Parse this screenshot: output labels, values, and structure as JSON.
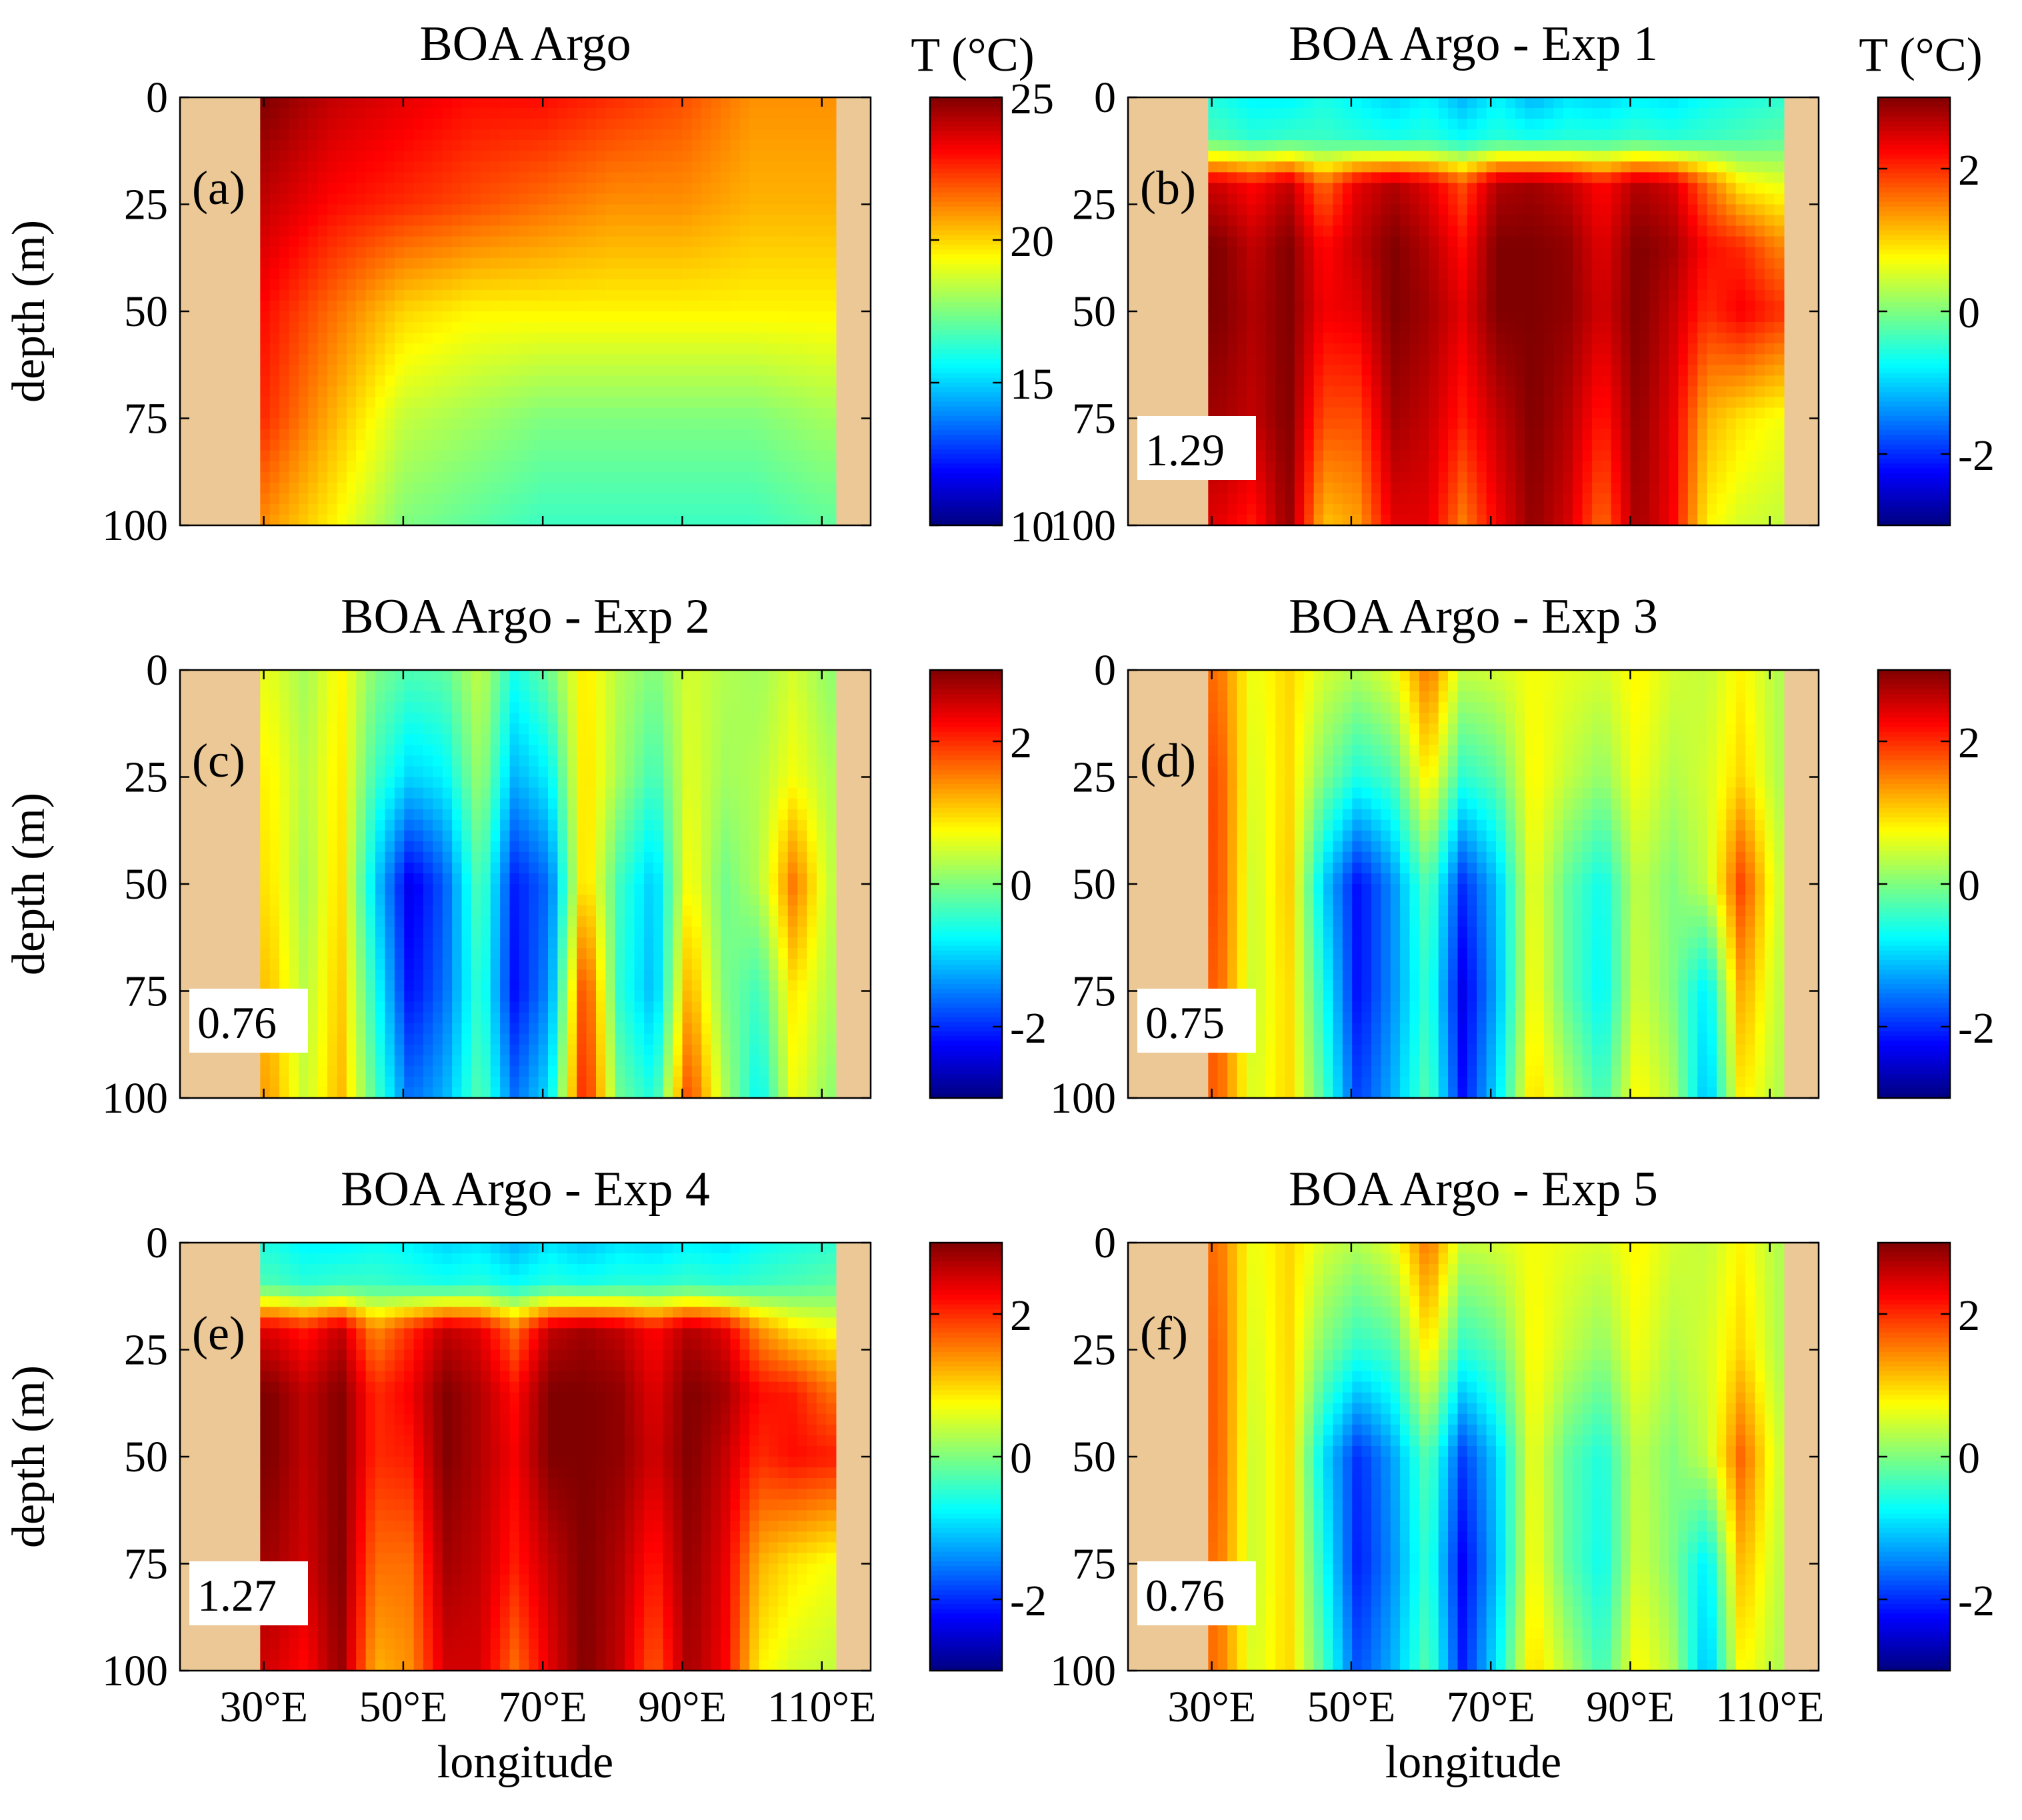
{
  "figure": {
    "xlabel": "longitude",
    "ylabel": "depth (m)",
    "colorbar_title": "T (°C)"
  },
  "chart_data": [
    {
      "type": "heatmap",
      "panel": "(a)",
      "title": "BOA Argo",
      "xlabel": "",
      "ylabel": "depth (m)",
      "x_ticks": [
        "30°E",
        "50°E",
        "70°E",
        "90°E",
        "110°E"
      ],
      "x_tick_values": [
        30,
        50,
        70,
        90,
        110
      ],
      "x_tick_labels_visible": false,
      "xlim": [
        18,
        117
      ],
      "y_ticks": [
        "0",
        "25",
        "50",
        "75",
        "100"
      ],
      "y_tick_values": [
        0,
        25,
        50,
        75,
        100
      ],
      "ylim": [
        0,
        100
      ],
      "y_reversed": true,
      "land_extent": [
        29.5,
        112
      ],
      "colorbar": {
        "title": "T (°C)",
        "ticks": [
          "25",
          "20",
          "15",
          "10"
        ],
        "tick_values": [
          25,
          20,
          15,
          10
        ],
        "range": [
          10,
          25
        ],
        "colormap": "jet"
      },
      "value_label": "",
      "field": {
        "x": [
          30,
          40,
          50,
          60,
          70,
          80,
          90,
          100,
          110
        ],
        "depth": [
          0,
          25,
          50,
          75,
          100
        ],
        "values": [
          [
            25,
            24,
            23.5,
            23,
            23,
            22.5,
            22,
            21,
            21
          ],
          [
            24,
            23,
            22.5,
            22,
            21.5,
            21,
            21,
            20.5,
            20.5
          ],
          [
            23,
            21.5,
            20,
            19.5,
            19.5,
            19.5,
            19.5,
            19.5,
            19.5
          ],
          [
            22.5,
            20.5,
            18.5,
            18,
            17.5,
            17.5,
            17.5,
            17.5,
            18
          ],
          [
            21,
            19.5,
            17.5,
            17,
            16.5,
            16.5,
            16.5,
            16.5,
            17
          ]
        ]
      }
    },
    {
      "type": "heatmap",
      "panel": "(b)",
      "title": "BOA Argo - Exp 1",
      "xlabel": "",
      "ylabel": "",
      "x_ticks": [
        "30°E",
        "50°E",
        "70°E",
        "90°E",
        "110°E"
      ],
      "x_tick_values": [
        30,
        50,
        70,
        90,
        110
      ],
      "x_tick_labels_visible": false,
      "xlim": [
        18,
        117
      ],
      "y_ticks": [
        "0",
        "25",
        "50",
        "75",
        "100"
      ],
      "y_tick_values": [
        0,
        25,
        50,
        75,
        100
      ],
      "ylim": [
        0,
        100
      ],
      "y_reversed": true,
      "land_extent": [
        29.5,
        112
      ],
      "colorbar": {
        "title": "T (°C)",
        "ticks": [
          "2",
          "0",
          "-2"
        ],
        "tick_values": [
          2,
          0,
          -2
        ],
        "range": [
          -3,
          3
        ],
        "colormap": "jet"
      },
      "value_label": "1.29",
      "field": {
        "x": [
          31,
          36,
          41,
          46,
          51,
          56,
          61,
          66,
          71,
          76,
          81,
          86,
          91,
          96,
          101,
          106,
          111
        ],
        "depth": [
          0,
          10,
          20,
          35,
          50,
          75,
          100
        ],
        "values": [
          [
            -0.6,
            -0.8,
            -0.8,
            -0.6,
            -0.8,
            -1,
            -0.8,
            -1.2,
            -0.8,
            -1.2,
            -0.9,
            -1,
            -0.8,
            -0.9,
            -0.7,
            -0.6,
            -0.5
          ],
          [
            -0.3,
            -0.5,
            -0.4,
            -0.4,
            -0.5,
            -0.6,
            -0.5,
            -0.7,
            -0.5,
            -0.6,
            -0.5,
            -0.5,
            -0.4,
            -0.5,
            -0.4,
            -0.3,
            -0.2
          ],
          [
            2.5,
            2.2,
            2.6,
            1.6,
            2.4,
            2.7,
            2.4,
            1.8,
            2.7,
            2.8,
            2.6,
            2.2,
            2.7,
            2.5,
            1.6,
            0.8,
            0.6
          ],
          [
            3,
            2.6,
            3,
            2.2,
            2.6,
            3,
            2.7,
            2.2,
            3,
            3,
            2.9,
            2.4,
            3,
            2.8,
            2.2,
            2,
            1.5
          ],
          [
            3,
            2.7,
            3,
            2.3,
            2.4,
            3,
            2.8,
            2.4,
            3,
            3,
            2.9,
            2.5,
            3,
            2.6,
            2,
            2.3,
            2
          ],
          [
            2.8,
            2.6,
            3,
            1.8,
            1.8,
            2.8,
            2.6,
            2.1,
            2.6,
            3,
            2.7,
            2.1,
            2.9,
            2.4,
            1.2,
            0.9,
            0.7
          ],
          [
            2.4,
            2.1,
            2.9,
            1.1,
            1.3,
            2.4,
            2.4,
            1.5,
            2.3,
            2.9,
            2.5,
            1.6,
            2.8,
            2.3,
            0.8,
            0.5,
            0.4
          ]
        ]
      }
    },
    {
      "type": "heatmap",
      "panel": "(c)",
      "title": "BOA Argo - Exp 2",
      "xlabel": "",
      "ylabel": "depth (m)",
      "x_ticks": [
        "30°E",
        "50°E",
        "70°E",
        "90°E",
        "110°E"
      ],
      "x_tick_values": [
        30,
        50,
        70,
        90,
        110
      ],
      "x_tick_labels_visible": false,
      "xlim": [
        18,
        117
      ],
      "y_ticks": [
        "0",
        "25",
        "50",
        "75",
        "100"
      ],
      "y_tick_values": [
        0,
        25,
        50,
        75,
        100
      ],
      "ylim": [
        0,
        100
      ],
      "y_reversed": true,
      "land_extent": [
        29.5,
        112
      ],
      "colorbar": {
        "title": "",
        "ticks": [
          "2",
          "0",
          "-2"
        ],
        "tick_values": [
          2,
          0,
          -2
        ],
        "range": [
          -3,
          3
        ],
        "colormap": "jet"
      },
      "value_label": "0.76",
      "field": {
        "x": [
          31,
          36,
          41,
          46,
          51,
          56,
          61,
          66,
          71,
          76,
          81,
          86,
          91,
          96,
          101,
          106,
          111
        ],
        "depth": [
          0,
          25,
          50,
          75,
          100
        ],
        "values": [
          [
            0.6,
            0.2,
            0.8,
            0,
            -0.3,
            -0.2,
            0.4,
            -0.6,
            -0.1,
            0.9,
            0.3,
            0,
            0.5,
            0.3,
            0.2,
            0.5,
            0.1
          ],
          [
            0.8,
            0.3,
            0.9,
            -0.4,
            -1,
            -0.8,
            0.2,
            -1.2,
            -0.8,
            1,
            0.2,
            -0.4,
            0.6,
            0.2,
            0.3,
            0.7,
            0.3
          ],
          [
            0.9,
            0.2,
            1,
            -1,
            -2.4,
            -1.7,
            -0.2,
            -2.1,
            -1.6,
            1.1,
            -0.4,
            -1.1,
            0.8,
            -0.1,
            0.3,
            1.6,
            0.4
          ],
          [
            1.1,
            0.3,
            1.1,
            -0.6,
            -2.2,
            -1.6,
            -0.4,
            -2.2,
            -1.4,
            2,
            -0.5,
            -1.2,
            1.3,
            0,
            -0.4,
            0.9,
            0.3
          ],
          [
            1.3,
            0.4,
            1.2,
            -0.3,
            -1.6,
            -1.2,
            -0.2,
            -1.6,
            -0.9,
            2.2,
            -0.1,
            -0.6,
            1.9,
            0.3,
            -0.8,
            0.7,
            0.1
          ]
        ]
      }
    },
    {
      "type": "heatmap",
      "panel": "(d)",
      "title": "BOA Argo - Exp 3",
      "xlabel": "",
      "ylabel": "",
      "x_ticks": [
        "30°E",
        "50°E",
        "70°E",
        "90°E",
        "110°E"
      ],
      "x_tick_values": [
        30,
        50,
        70,
        90,
        110
      ],
      "x_tick_labels_visible": false,
      "xlim": [
        18,
        117
      ],
      "y_ticks": [
        "0",
        "25",
        "50",
        "75",
        "100"
      ],
      "y_tick_values": [
        0,
        25,
        50,
        75,
        100
      ],
      "ylim": [
        0,
        100
      ],
      "y_reversed": true,
      "land_extent": [
        29.5,
        112
      ],
      "colorbar": {
        "title": "",
        "ticks": [
          "2",
          "0",
          "-2"
        ],
        "tick_values": [
          2,
          0,
          -2
        ],
        "range": [
          -3,
          3
        ],
        "colormap": "jet"
      },
      "value_label": "0.75",
      "field": {
        "x": [
          31,
          36,
          41,
          46,
          51,
          56,
          61,
          66,
          71,
          76,
          81,
          86,
          91,
          96,
          101,
          106,
          111
        ],
        "depth": [
          0,
          25,
          50,
          75,
          100
        ],
        "values": [
          [
            1.6,
            0.6,
            1,
            0.5,
            0.3,
            0.6,
            1.6,
            0.4,
            0.5,
            0.7,
            0.6,
            0.5,
            0.8,
            0.5,
            0.4,
            0.8,
            0.3
          ],
          [
            1.8,
            0.5,
            1,
            0,
            -0.6,
            -0.3,
            0.9,
            -0.5,
            -0.2,
            0.8,
            0.4,
            0.1,
            0.7,
            0.3,
            0.5,
            1,
            0.3
          ],
          [
            1.8,
            0.4,
            1.1,
            -1,
            -2.2,
            -1.4,
            -0.2,
            -2,
            -1.1,
            0.7,
            -0.2,
            -0.7,
            0.4,
            0,
            0.4,
            1.9,
            0.5
          ],
          [
            1.7,
            0.4,
            1,
            -0.6,
            -2.2,
            -1.4,
            -0.4,
            -2.4,
            -1.2,
            0.8,
            -0.2,
            -0.8,
            0.5,
            0,
            -0.9,
            1.3,
            0.4
          ],
          [
            1.7,
            0.5,
            1,
            -0.3,
            -1.9,
            -1.2,
            -0.2,
            -2.2,
            -0.9,
            1,
            0.3,
            -0.4,
            0.8,
            0.3,
            -1.2,
            0.9,
            0.3
          ]
        ]
      }
    },
    {
      "type": "heatmap",
      "panel": "(e)",
      "title": "BOA Argo - Exp 4",
      "xlabel": "longitude",
      "ylabel": "depth (m)",
      "x_ticks": [
        "30°E",
        "50°E",
        "70°E",
        "90°E",
        "110°E"
      ],
      "x_tick_values": [
        30,
        50,
        70,
        90,
        110
      ],
      "x_tick_labels_visible": true,
      "xlim": [
        18,
        117
      ],
      "y_ticks": [
        "0",
        "25",
        "50",
        "75",
        "100"
      ],
      "y_tick_values": [
        0,
        25,
        50,
        75,
        100
      ],
      "ylim": [
        0,
        100
      ],
      "y_reversed": true,
      "land_extent": [
        29.5,
        112
      ],
      "colorbar": {
        "title": "",
        "ticks": [
          "2",
          "0",
          "-2"
        ],
        "tick_values": [
          2,
          0,
          -2
        ],
        "range": [
          -3,
          3
        ],
        "colormap": "jet"
      },
      "value_label": "1.27",
      "field": {
        "x": [
          31,
          36,
          41,
          46,
          51,
          56,
          61,
          66,
          71,
          76,
          81,
          86,
          91,
          96,
          101,
          106,
          111
        ],
        "depth": [
          0,
          10,
          20,
          35,
          50,
          75,
          100
        ],
        "values": [
          [
            -0.6,
            -0.8,
            -0.8,
            -0.7,
            -0.8,
            -1,
            -0.9,
            -1.2,
            -0.9,
            -1.1,
            -0.9,
            -1,
            -0.8,
            -0.9,
            -0.7,
            -0.6,
            -0.5
          ],
          [
            -0.3,
            -0.5,
            -0.4,
            -0.4,
            -0.5,
            -0.6,
            -0.5,
            -0.7,
            -0.5,
            -0.6,
            -0.5,
            -0.5,
            -0.4,
            -0.5,
            -0.4,
            -0.3,
            -0.2
          ],
          [
            2.4,
            2.1,
            2.6,
            1.4,
            2,
            2.6,
            2.4,
            1.6,
            2.6,
            2.8,
            2.6,
            2.2,
            2.7,
            2.4,
            1.4,
            0.9,
            0.7
          ],
          [
            3,
            2.6,
            3,
            2,
            2.3,
            3,
            2.7,
            2.2,
            3,
            3,
            2.9,
            2.4,
            3,
            2.8,
            2.2,
            2.1,
            1.6
          ],
          [
            3,
            2.6,
            3,
            2,
            2.1,
            3,
            2.7,
            2.3,
            3,
            3,
            2.9,
            2.5,
            3,
            2.6,
            2,
            2.2,
            2.1
          ],
          [
            2.8,
            2.5,
            3,
            1.6,
            1.6,
            2.8,
            2.6,
            2.1,
            2.6,
            3,
            2.7,
            2.1,
            2.9,
            2.4,
            1.2,
            0.9,
            0.7
          ],
          [
            2.5,
            2.2,
            2.9,
            1.2,
            1.4,
            2.5,
            2.5,
            1.6,
            2.4,
            3,
            2.6,
            1.7,
            2.8,
            2.3,
            0.8,
            0.5,
            0.4
          ]
        ]
      }
    },
    {
      "type": "heatmap",
      "panel": "(f)",
      "title": "BOA Argo - Exp 5",
      "xlabel": "longitude",
      "ylabel": "",
      "x_ticks": [
        "30°E",
        "50°E",
        "70°E",
        "90°E",
        "110°E"
      ],
      "x_tick_values": [
        30,
        50,
        70,
        90,
        110
      ],
      "x_tick_labels_visible": true,
      "xlim": [
        18,
        117
      ],
      "y_ticks": [
        "0",
        "25",
        "50",
        "75",
        "100"
      ],
      "y_tick_values": [
        0,
        25,
        50,
        75,
        100
      ],
      "ylim": [
        0,
        100
      ],
      "y_reversed": true,
      "land_extent": [
        29.5,
        112
      ],
      "colorbar": {
        "title": "",
        "ticks": [
          "2",
          "0",
          "-2"
        ],
        "tick_values": [
          2,
          0,
          -2
        ],
        "range": [
          -3,
          3
        ],
        "colormap": "jet"
      },
      "value_label": "0.76",
      "field": {
        "x": [
          31,
          36,
          41,
          46,
          51,
          56,
          61,
          66,
          71,
          76,
          81,
          86,
          91,
          96,
          101,
          106,
          111
        ],
        "depth": [
          0,
          25,
          50,
          75,
          100
        ],
        "values": [
          [
            1.6,
            0.6,
            1,
            0.5,
            0.3,
            0.6,
            1.6,
            0.4,
            0.5,
            0.7,
            0.6,
            0.5,
            0.8,
            0.5,
            0.4,
            0.8,
            0.3
          ],
          [
            1.7,
            0.5,
            1,
            0,
            -0.5,
            -0.3,
            0.9,
            -0.5,
            -0.2,
            0.8,
            0.4,
            0.1,
            0.7,
            0.3,
            0.5,
            1,
            0.3
          ],
          [
            1.7,
            0.4,
            1,
            -0.9,
            -2,
            -1.3,
            -0.2,
            -1.9,
            -1,
            0.7,
            -0.2,
            -0.6,
            0.4,
            0,
            0.4,
            1.7,
            0.5
          ],
          [
            1.6,
            0.4,
            1,
            -0.6,
            -2.1,
            -1.4,
            -0.4,
            -2.3,
            -1.1,
            0.8,
            -0.2,
            -0.7,
            0.5,
            0,
            -0.9,
            1.2,
            0.4
          ],
          [
            1.6,
            0.5,
            1,
            -0.3,
            -1.8,
            -1.2,
            -0.2,
            -2.1,
            -0.8,
            1,
            0.3,
            -0.4,
            0.8,
            0.3,
            -1.2,
            0.8,
            0.3
          ]
        ]
      }
    }
  ]
}
